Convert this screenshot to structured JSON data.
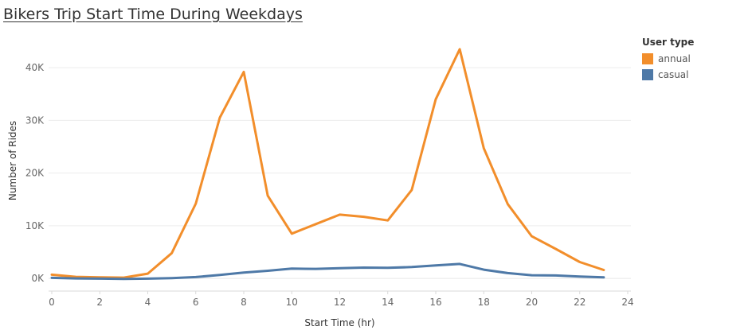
{
  "title": "Bikers Trip Start Time During Weekdays",
  "chart_data": {
    "type": "line",
    "title": "Bikers Trip Start Time During Weekdays",
    "xlabel": "Start Time (hr)",
    "ylabel": "Number of Rides",
    "x": [
      0,
      1,
      2,
      3,
      4,
      5,
      6,
      7,
      8,
      9,
      10,
      11,
      12,
      13,
      14,
      15,
      16,
      17,
      18,
      19,
      20,
      21,
      22,
      23
    ],
    "xlim": [
      0,
      24
    ],
    "ylim": [
      -1800,
      46500
    ],
    "x_ticks": [
      0,
      2,
      4,
      6,
      8,
      10,
      12,
      14,
      16,
      18,
      20,
      22,
      24
    ],
    "x_tick_labels": [
      "0",
      "2",
      "4",
      "6",
      "8",
      "10",
      "12",
      "14",
      "16",
      "18",
      "20",
      "22",
      "24"
    ],
    "y_ticks": [
      0,
      10000,
      20000,
      30000,
      40000
    ],
    "y_tick_labels": [
      "0K",
      "10K",
      "20K",
      "30K",
      "40K"
    ],
    "grid": "horizontal",
    "legend_title": "User type",
    "legend_position": "right",
    "series": [
      {
        "name": "annual",
        "color": "#F28E2B",
        "values": [
          700,
          300,
          200,
          150,
          900,
          4800,
          14200,
          30500,
          39200,
          15700,
          8500,
          10300,
          12100,
          11700,
          11000,
          16800,
          34000,
          43500,
          24700,
          14100,
          8000,
          5600,
          3100,
          1600
        ]
      },
      {
        "name": "casual",
        "color": "#4E79A7",
        "values": [
          100,
          0,
          -50,
          -100,
          -50,
          50,
          250,
          650,
          1100,
          1450,
          1850,
          1800,
          1950,
          2050,
          2000,
          2150,
          2450,
          2750,
          1650,
          1000,
          600,
          550,
          350,
          200
        ]
      }
    ]
  }
}
